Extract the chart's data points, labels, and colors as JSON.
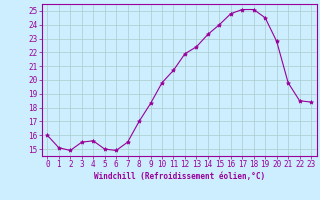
{
  "x": [
    0,
    1,
    2,
    3,
    4,
    5,
    6,
    7,
    8,
    9,
    10,
    11,
    12,
    13,
    14,
    15,
    16,
    17,
    18,
    19,
    20,
    21,
    22,
    23
  ],
  "y": [
    16.0,
    15.1,
    14.9,
    15.5,
    15.6,
    15.0,
    14.9,
    15.5,
    17.0,
    18.3,
    19.8,
    20.7,
    21.9,
    22.4,
    23.3,
    24.0,
    24.8,
    25.1,
    25.1,
    24.5,
    22.8,
    19.8,
    18.5,
    18.4
  ],
  "line_color": "#990099",
  "marker": "*",
  "marker_size": 3,
  "xlabel": "Windchill (Refroidissement éolien,°C)",
  "xlim": [
    -0.5,
    23.5
  ],
  "ylim": [
    14.5,
    25.5
  ],
  "yticks": [
    15,
    16,
    17,
    18,
    19,
    20,
    21,
    22,
    23,
    24,
    25
  ],
  "xticks": [
    0,
    1,
    2,
    3,
    4,
    5,
    6,
    7,
    8,
    9,
    10,
    11,
    12,
    13,
    14,
    15,
    16,
    17,
    18,
    19,
    20,
    21,
    22,
    23
  ],
  "bg_color": "#cceeff",
  "grid_color": "#aacccc",
  "spine_color": "#990099",
  "tick_color": "#990099",
  "label_color": "#990099",
  "font_size": 5.5
}
